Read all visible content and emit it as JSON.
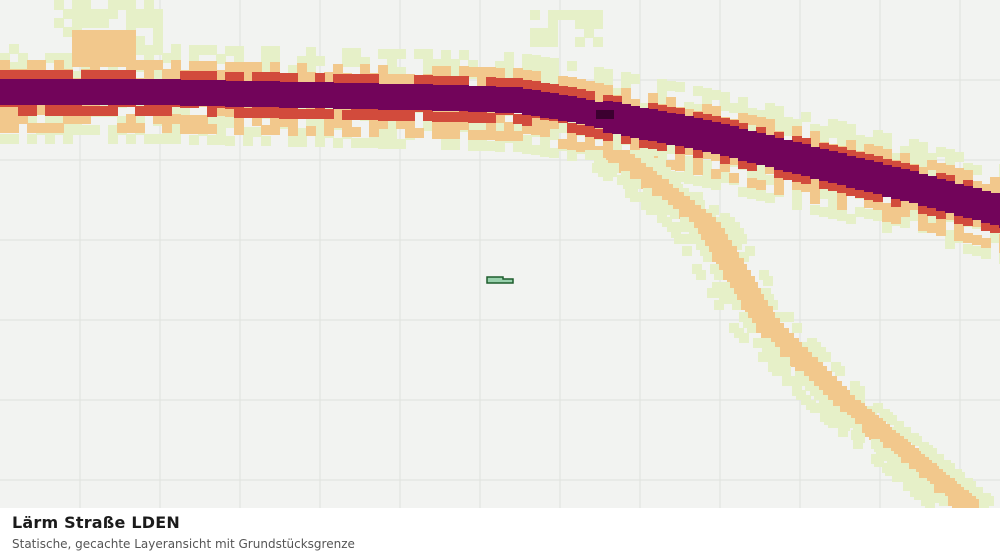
{
  "map": {
    "legend_colors": {
      "background": "#f2f3f1",
      "grid": "#dfe1dd",
      "band_1": "#e6f0c8",
      "band_2": "#f2c88c",
      "band_3": "#d24b3c",
      "band_4": "#72045a",
      "band_5": "#3c0030",
      "parcel_fill": "#98d0ac",
      "parcel_stroke": "#1c5c2c"
    },
    "layer": "noise-road-lden",
    "parcel_marker": "property-boundary"
  },
  "caption": {
    "title": "Lärm Straße LDEN",
    "subtitle": "Statische, gecachte Layeransicht mit Grundstücksgrenze"
  }
}
